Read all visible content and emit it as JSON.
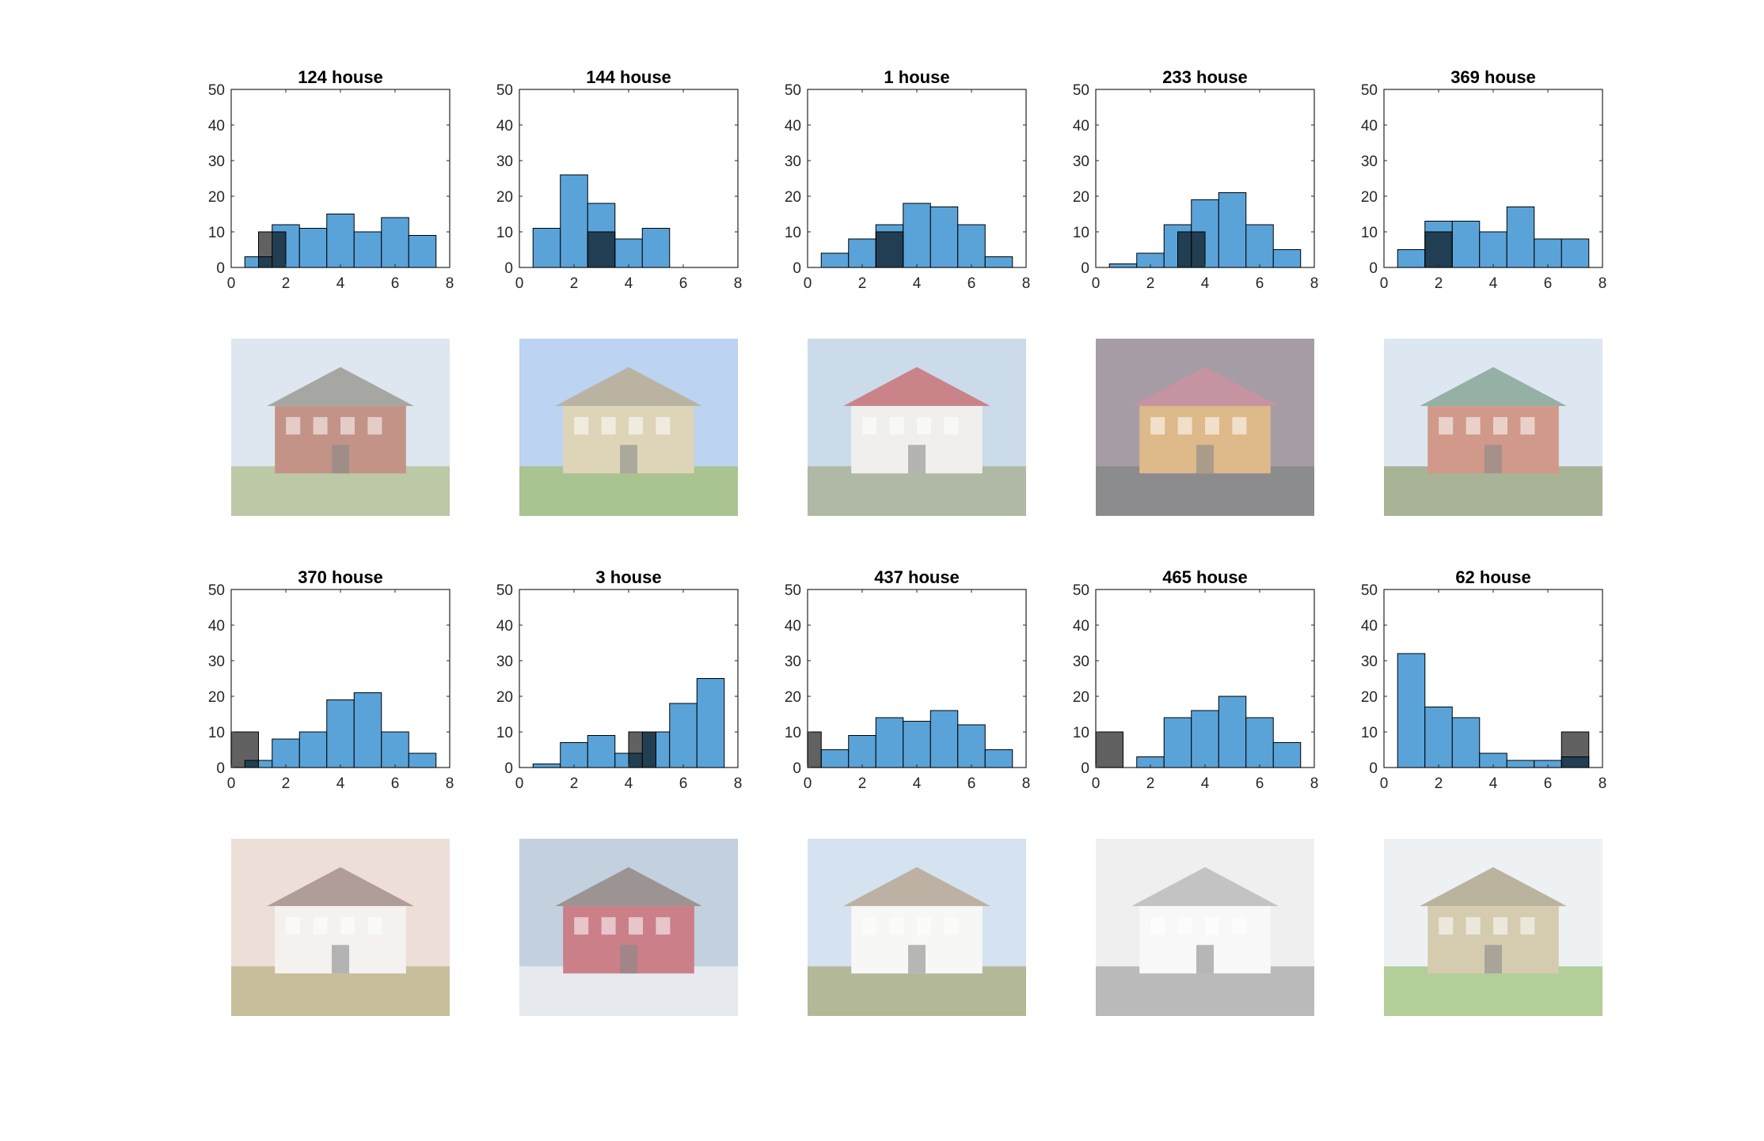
{
  "figure": {
    "colors": {
      "blue": "#5aa3d8",
      "dark": "#4d4d4d",
      "axis": "#262626",
      "photo_frame": "#ffffff"
    },
    "axis": {
      "xlim": [
        0,
        8
      ],
      "ylim": [
        0,
        50
      ],
      "xticks": [
        0,
        2,
        4,
        6,
        8
      ],
      "yticks": [
        0,
        10,
        20,
        30,
        40,
        50
      ]
    }
  },
  "chart_data": [
    {
      "type": "bar",
      "title": "124 house",
      "bin_edges": [
        0.5,
        1.5,
        2.5,
        3.5,
        4.5,
        5.5,
        6.5,
        7.5
      ],
      "series": [
        {
          "values": [
            3,
            12,
            11,
            15,
            10,
            14,
            9
          ]
        }
      ],
      "overlay": {
        "bin_edges": [
          1.0,
          2.0
        ],
        "values": [
          10
        ]
      },
      "photo": {
        "icon": "victorian-house-photo",
        "sky": "#c9d8e6",
        "ground": "#8fa36a",
        "body": "#9b4a35",
        "roof": "#6b6a63"
      }
    },
    {
      "type": "bar",
      "title": "144 house",
      "bin_edges": [
        0.5,
        1.5,
        2.5,
        3.5,
        4.5,
        5.5
      ],
      "series": [
        {
          "values": [
            11,
            26,
            18,
            8,
            11
          ]
        }
      ],
      "overlay": {
        "bin_edges": [
          2.5,
          3.5
        ],
        "values": [
          10
        ]
      },
      "photo": {
        "icon": "country-manor-photo",
        "sky": "#8fb6e8",
        "ground": "#6e9a46",
        "body": "#c9b98a",
        "roof": "#8d7f62"
      }
    },
    {
      "type": "bar",
      "title": "1 house",
      "bin_edges": [
        0.5,
        1.5,
        2.5,
        3.5,
        4.5,
        5.5,
        6.5,
        7.5
      ],
      "series": [
        {
          "values": [
            4,
            8,
            12,
            18,
            17,
            12,
            3
          ]
        }
      ],
      "overlay": {
        "bin_edges": [
          2.5,
          3.5
        ],
        "values": [
          10
        ]
      },
      "photo": {
        "icon": "red-roof-house-photo",
        "sky": "#a9c4dc",
        "ground": "#7c8a6b",
        "body": "#e8e6e2",
        "roof": "#a8303a"
      }
    },
    {
      "type": "bar",
      "title": "233 house",
      "bin_edges": [
        0.5,
        1.5,
        2.5,
        3.5,
        4.5,
        5.5,
        6.5,
        7.5
      ],
      "series": [
        {
          "values": [
            1,
            4,
            12,
            19,
            21,
            12,
            5
          ]
        }
      ],
      "overlay": {
        "bin_edges": [
          3.0,
          4.0
        ],
        "values": [
          10
        ]
      },
      "photo": {
        "icon": "night-house-photo",
        "sky": "#6b5a6a",
        "ground": "#3f3f44",
        "body": "#c98a3a",
        "roof": "#a04a60"
      }
    },
    {
      "type": "bar",
      "title": "369 house",
      "bin_edges": [
        0.5,
        1.5,
        2.5,
        3.5,
        4.5,
        5.5,
        6.5,
        7.5
      ],
      "series": [
        {
          "values": [
            5,
            13,
            13,
            10,
            17,
            8,
            8
          ]
        }
      ],
      "overlay": {
        "bin_edges": [
          1.5,
          2.5
        ],
        "values": [
          10
        ]
      },
      "photo": {
        "icon": "green-victorian-house-photo",
        "sky": "#c7d8ea",
        "ground": "#6f8250",
        "body": "#b0553a",
        "roof": "#4d7a68"
      }
    },
    {
      "type": "bar",
      "title": "370 house",
      "bin_edges": [
        0.5,
        1.5,
        2.5,
        3.5,
        4.5,
        5.5,
        6.5,
        7.5
      ],
      "series": [
        {
          "values": [
            2,
            8,
            10,
            19,
            21,
            10,
            4
          ]
        }
      ],
      "overlay": {
        "bin_edges": [
          0.0,
          1.0
        ],
        "values": [
          10
        ]
      },
      "photo": {
        "icon": "white-farmhouse-photo",
        "sky": "#e3c9bf",
        "ground": "#a39057",
        "body": "#eeeae6",
        "roof": "#7a5a55"
      }
    },
    {
      "type": "bar",
      "title": "3 house",
      "bin_edges": [
        0.5,
        1.5,
        2.5,
        3.5,
        4.5,
        5.5,
        6.5,
        7.5
      ],
      "series": [
        {
          "values": [
            1,
            7,
            9,
            4,
            10,
            18,
            25
          ]
        }
      ],
      "overlay": {
        "bin_edges": [
          4.0,
          5.0
        ],
        "values": [
          10
        ]
      },
      "photo": {
        "icon": "red-winter-house-photo",
        "sky": "#9bb3c9",
        "ground": "#d6dde4",
        "body": "#a8283a",
        "roof": "#5a4a4a"
      }
    },
    {
      "type": "bar",
      "title": "437 house",
      "bin_edges": [
        0.5,
        1.5,
        2.5,
        3.5,
        4.5,
        5.5,
        6.5,
        7.5
      ],
      "series": [
        {
          "values": [
            5,
            9,
            14,
            13,
            16,
            12,
            5
          ]
        }
      ],
      "overlay": {
        "bin_edges": [
          0.0,
          0.5
        ],
        "values": [
          10
        ]
      },
      "photo": {
        "icon": "thatched-cottage-photo",
        "sky": "#b9d0e6",
        "ground": "#7f8a52",
        "body": "#f2f2f0",
        "roof": "#8f7d63"
      }
    },
    {
      "type": "bar",
      "title": "465 house",
      "bin_edges": [
        1.5,
        2.5,
        3.5,
        4.5,
        5.5,
        6.5,
        7.5
      ],
      "series": [
        {
          "values": [
            3,
            14,
            16,
            20,
            14,
            7
          ]
        }
      ],
      "overlay": {
        "bin_edges": [
          0.0,
          1.0
        ],
        "values": [
          10
        ]
      },
      "photo": {
        "icon": "terrace-street-photo",
        "sky": "#e6e6e6",
        "ground": "#8c8c8c",
        "body": "#f4f4f4",
        "roof": "#9a9a9a"
      }
    },
    {
      "type": "bar",
      "title": "62 house",
      "bin_edges": [
        0.5,
        1.5,
        2.5,
        3.5,
        4.5,
        5.5,
        6.5,
        7.5
      ],
      "series": [
        {
          "values": [
            32,
            17,
            14,
            4,
            2,
            2,
            3
          ]
        }
      ],
      "overlay": {
        "bin_edges": [
          6.5,
          7.5
        ],
        "values": [
          10
        ]
      },
      "photo": {
        "icon": "stately-palace-photo",
        "sky": "#e2e8ee",
        "ground": "#7fae52",
        "body": "#b9aa7c",
        "roof": "#8c7f5c"
      }
    }
  ]
}
